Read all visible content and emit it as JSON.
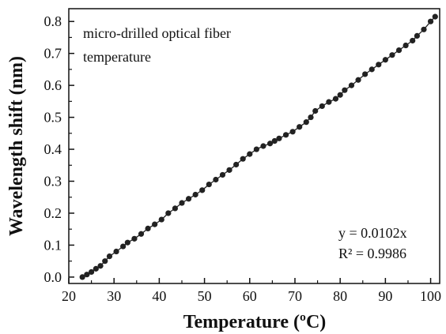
{
  "chart_data": {
    "type": "scatter",
    "xlabel": "Temperature (ºC)",
    "ylabel": "Wavelength shift (nm)",
    "xlim": [
      20,
      102
    ],
    "ylim": [
      -0.02,
      0.84
    ],
    "xticks": [
      20,
      30,
      40,
      50,
      60,
      70,
      80,
      90,
      100
    ],
    "yticks": [
      0.0,
      0.1,
      0.2,
      0.3,
      0.4,
      0.5,
      0.6,
      0.7,
      0.8
    ],
    "xtick_labels": [
      "20",
      "30",
      "40",
      "50",
      "60",
      "70",
      "80",
      "90",
      "100"
    ],
    "ytick_labels": [
      "0.0",
      "0.1",
      "0.2",
      "0.3",
      "0.4",
      "0.5",
      "0.6",
      "0.7",
      "0.8"
    ],
    "annotations": {
      "sample_line1": "micro-drilled optical fiber",
      "sample_line2": "temperature",
      "fit_equation": "y = 0.0102x",
      "fit_r2": "R² = 0.9986"
    },
    "grid": false,
    "marker_color": "#222222",
    "line_color": "#222222",
    "series": [
      {
        "x": [
          23,
          24,
          25,
          26,
          27,
          28,
          29,
          30.5,
          32,
          33,
          34.5,
          36,
          37.5,
          39,
          40.5,
          42,
          43.5,
          45,
          46.5,
          48,
          49.5,
          51,
          52.5,
          54,
          55.5,
          57,
          58.5,
          60,
          61.5,
          63,
          64.5,
          65.5,
          66.5,
          68,
          69.5,
          71,
          72.5,
          73.5,
          74.5,
          76,
          77.5,
          79,
          80,
          81,
          82.5,
          84,
          85.5,
          87,
          88.5,
          90,
          91.5,
          93,
          94.5,
          96,
          97,
          98.5,
          100,
          101
        ],
        "y": [
          0.0,
          0.008,
          0.016,
          0.026,
          0.035,
          0.05,
          0.065,
          0.08,
          0.096,
          0.108,
          0.12,
          0.135,
          0.152,
          0.165,
          0.18,
          0.2,
          0.215,
          0.232,
          0.245,
          0.258,
          0.272,
          0.29,
          0.305,
          0.32,
          0.335,
          0.352,
          0.37,
          0.385,
          0.4,
          0.41,
          0.418,
          0.426,
          0.434,
          0.445,
          0.455,
          0.47,
          0.485,
          0.5,
          0.52,
          0.535,
          0.548,
          0.558,
          0.57,
          0.585,
          0.6,
          0.617,
          0.635,
          0.65,
          0.665,
          0.68,
          0.695,
          0.71,
          0.725,
          0.74,
          0.755,
          0.775,
          0.8,
          0.815
        ]
      }
    ]
  }
}
